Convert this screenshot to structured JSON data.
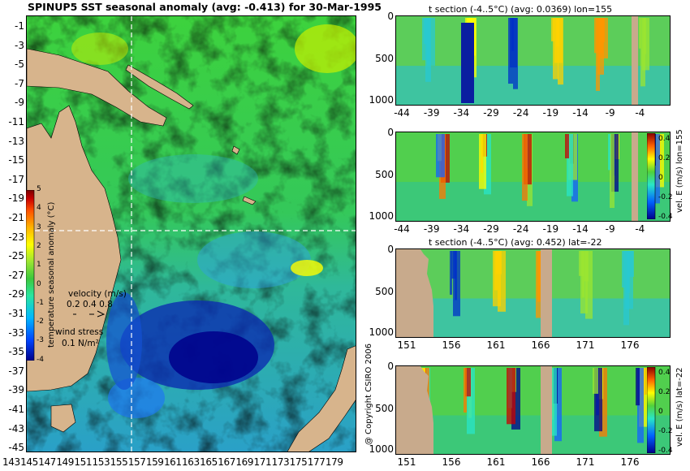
{
  "main_title": "SPINUP5 SST seasonal anomaly (avg: -0.413) for 30-Mar-1995",
  "copyright": "@ Copyright CSIRO 2006",
  "colors": {
    "land": "#d7b48c",
    "anomaly_colormap": [
      "#00008b",
      "#0044ff",
      "#00b7ff",
      "#28e6a0",
      "#3cc83c",
      "#9be632",
      "#ffff00",
      "#ffb400",
      "#ff5000",
      "#c80000",
      "#7a0000"
    ]
  },
  "chart_data": [
    {
      "type": "heatmap",
      "title": "SPINUP5 SST seasonal anomaly (avg: -0.413) for 30-Mar-1995",
      "x_ticks": [
        "143",
        "145",
        "147",
        "149",
        "151",
        "153",
        "155",
        "157",
        "159",
        "161",
        "163",
        "165",
        "167",
        "169",
        "171",
        "173",
        "175",
        "177",
        "179"
      ],
      "y_ticks": [
        "-1",
        "-3",
        "-5",
        "-7",
        "-9",
        "-11",
        "-13",
        "-15",
        "-17",
        "-19",
        "-21",
        "-23",
        "-25",
        "-27",
        "-29",
        "-31",
        "-33",
        "-35",
        "-37",
        "-39",
        "-41",
        "-43",
        "-45"
      ],
      "xlim": [
        142,
        180
      ],
      "ylim": [
        -45,
        0
      ],
      "crosshair": {
        "lon": 155,
        "lat": -22
      },
      "colorbar": {
        "label": "temperature seasonal anomaly (°C)",
        "ticks": [
          "5",
          "4",
          "3",
          "2",
          "1",
          "0",
          "-1",
          "-2",
          "-3",
          "-4"
        ],
        "range": [
          -4,
          5
        ]
      },
      "velocity_legend": {
        "label": "velocity (m/s)",
        "values": "0.2 0.4 0.8"
      },
      "wind_legend": {
        "label": "wind stress",
        "value": "0.1 N/m²"
      }
    },
    {
      "type": "heatmap",
      "title": "t section (-4..5°C) (avg: 0.0369) lon=155",
      "x_ticks": [
        "-44",
        "-39",
        "-34",
        "-29",
        "-24",
        "-19",
        "-14",
        "-9",
        "-4"
      ],
      "y_ticks": [
        "0",
        "500",
        "1000"
      ],
      "xlim": [
        -45,
        0
      ],
      "ylim": [
        1050,
        0
      ]
    },
    {
      "type": "heatmap",
      "title": "",
      "x_ticks": [
        "-44",
        "-39",
        "-34",
        "-29",
        "-24",
        "-19",
        "-14",
        "-9",
        "-4"
      ],
      "y_ticks": [
        "0",
        "500",
        "1000"
      ],
      "xlim": [
        -45,
        0
      ],
      "ylim": [
        1050,
        0
      ],
      "colorbar": {
        "label": "vel. E (m/s) lon=155",
        "ticks": [
          "0.4",
          "0.2",
          "0",
          "-0.2",
          "-0.4"
        ]
      }
    },
    {
      "type": "heatmap",
      "title": "t section (-4..5°C) (avg: 0.452) lat=-22",
      "x_ticks": [
        "151",
        "156",
        "161",
        "166",
        "171",
        "176"
      ],
      "y_ticks": [
        "0",
        "500",
        "1000"
      ],
      "xlim": [
        150,
        180
      ],
      "ylim": [
        1050,
        0
      ]
    },
    {
      "type": "heatmap",
      "title": "",
      "x_ticks": [
        "151",
        "156",
        "161",
        "166",
        "171",
        "176"
      ],
      "y_ticks": [
        "0",
        "500",
        "1000"
      ],
      "xlim": [
        150,
        180
      ],
      "ylim": [
        1050,
        0
      ],
      "colorbar": {
        "label": "vel. E (m/s) lat=-22",
        "ticks": [
          "0.4",
          "0.2",
          "0",
          "-0.2",
          "-0.4"
        ]
      }
    }
  ]
}
